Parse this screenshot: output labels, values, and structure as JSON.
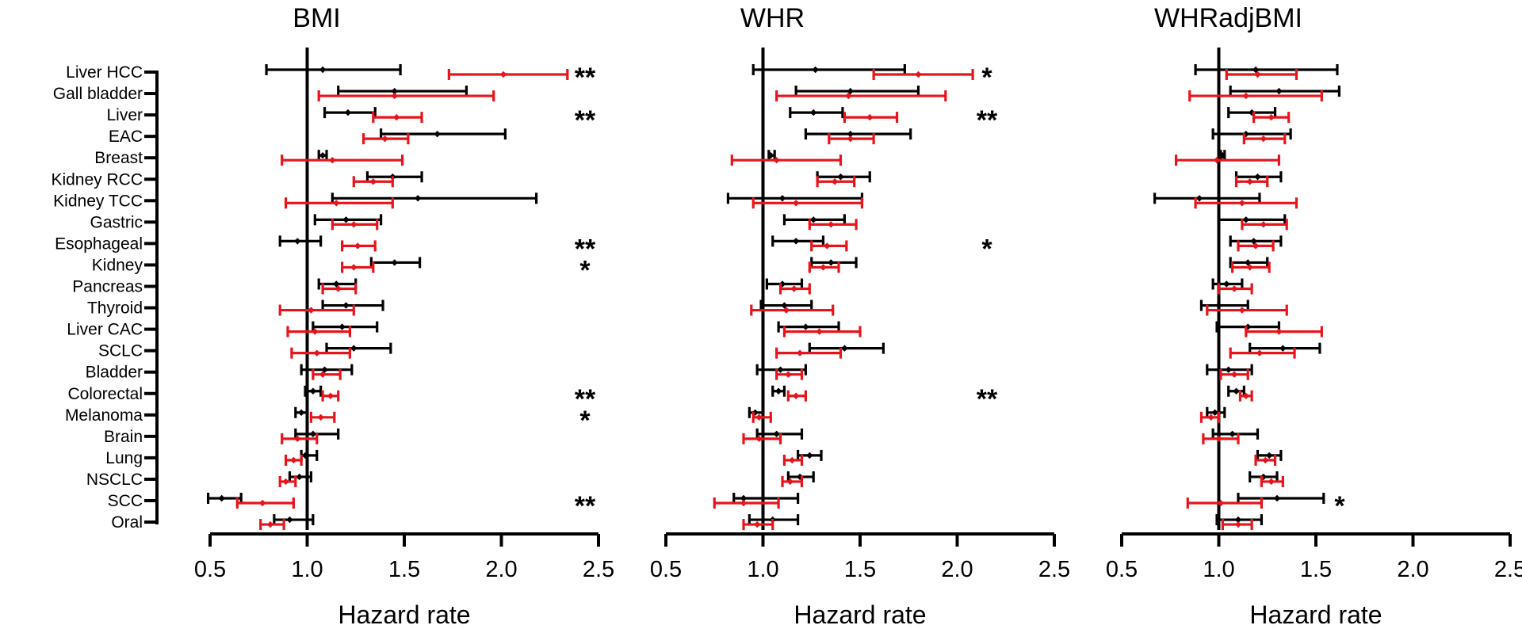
{
  "chart_data": {
    "type": "forest",
    "categories": [
      "Liver HCC",
      "Gall bladder",
      "Liver",
      "EAC",
      "Breast",
      "Kidney RCC",
      "Kidney TCC",
      "Gastric",
      "Esophageal",
      "Kidney",
      "Pancreas",
      "Thyroid",
      "Liver CAC",
      "SCLC",
      "Bladder",
      "Colorectal",
      "Melanoma",
      "Brain",
      "Lung",
      "NSCLC",
      "SCC",
      "Oral"
    ],
    "xlabel": "Hazard rate",
    "xlim": [
      0.5,
      2.5
    ],
    "xticks": [
      0.5,
      1.0,
      1.5,
      2.0,
      2.5
    ],
    "xtick_labels": [
      "0.5",
      "1.0",
      "1.5",
      "2.0",
      "2.5"
    ],
    "reference_line": 1.0,
    "series_colors": {
      "black": "#000000",
      "red": "#e8141c"
    },
    "panels": [
      {
        "title": "BMI",
        "black": [
          [
            1.08,
            0.79,
            1.48
          ],
          [
            1.45,
            1.16,
            1.82
          ],
          [
            1.21,
            1.09,
            1.35
          ],
          [
            1.67,
            1.38,
            2.02
          ],
          [
            1.08,
            1.06,
            1.1
          ],
          [
            1.44,
            1.31,
            1.59
          ],
          [
            1.57,
            1.13,
            2.18
          ],
          [
            1.2,
            1.04,
            1.38
          ],
          [
            0.95,
            0.86,
            1.07
          ],
          [
            1.45,
            1.33,
            1.58
          ],
          [
            1.15,
            1.06,
            1.25
          ],
          [
            1.2,
            1.08,
            1.39
          ],
          [
            1.18,
            1.03,
            1.36
          ],
          [
            1.24,
            1.1,
            1.43
          ],
          [
            1.09,
            0.97,
            1.23
          ],
          [
            1.03,
            0.99,
            1.07
          ],
          [
            0.97,
            0.94,
            1.0
          ],
          [
            1.03,
            0.94,
            1.16
          ],
          [
            0.99,
            0.97,
            1.05
          ],
          [
            0.96,
            0.91,
            1.02
          ],
          [
            0.56,
            0.49,
            0.66
          ],
          [
            0.91,
            0.83,
            1.03
          ]
        ],
        "red": [
          [
            2.01,
            1.73,
            2.34
          ],
          [
            1.45,
            1.06,
            1.96
          ],
          [
            1.46,
            1.34,
            1.59
          ],
          [
            1.4,
            1.29,
            1.52
          ],
          [
            1.13,
            0.87,
            1.49
          ],
          [
            1.34,
            1.24,
            1.44
          ],
          [
            1.15,
            0.89,
            1.44
          ],
          [
            1.24,
            1.13,
            1.36
          ],
          [
            1.26,
            1.18,
            1.35
          ],
          [
            1.24,
            1.18,
            1.34
          ],
          [
            1.16,
            1.08,
            1.25
          ],
          [
            1.02,
            0.86,
            1.24
          ],
          [
            1.04,
            0.9,
            1.22
          ],
          [
            1.05,
            0.92,
            1.22
          ],
          [
            1.08,
            1.03,
            1.17
          ],
          [
            1.12,
            1.08,
            1.16
          ],
          [
            1.07,
            1.02,
            1.14
          ],
          [
            0.95,
            0.87,
            1.05
          ],
          [
            0.93,
            0.89,
            0.97
          ],
          [
            0.89,
            0.86,
            0.94
          ],
          [
            0.77,
            0.64,
            0.93
          ],
          [
            0.81,
            0.76,
            0.88
          ]
        ],
        "sig": [
          "**",
          "",
          "**",
          "",
          "",
          "",
          "",
          "",
          "**",
          "*",
          "",
          "",
          "",
          "",
          "",
          "**",
          "*",
          "",
          "",
          "",
          "**",
          ""
        ]
      },
      {
        "title": "WHR",
        "black": [
          [
            1.27,
            0.95,
            1.73
          ],
          [
            1.45,
            1.17,
            1.8
          ],
          [
            1.26,
            1.14,
            1.41
          ],
          [
            1.45,
            1.22,
            1.76
          ],
          [
            1.04,
            1.03,
            1.06
          ],
          [
            1.4,
            1.28,
            1.55
          ],
          [
            1.1,
            0.82,
            1.51
          ],
          [
            1.26,
            1.11,
            1.42
          ],
          [
            1.17,
            1.05,
            1.31
          ],
          [
            1.35,
            1.25,
            1.48
          ],
          [
            1.1,
            1.02,
            1.2
          ],
          [
            1.11,
            0.99,
            1.25
          ],
          [
            1.22,
            1.08,
            1.39
          ],
          [
            1.42,
            1.24,
            1.62
          ],
          [
            1.09,
            0.97,
            1.22
          ],
          [
            1.08,
            1.05,
            1.11
          ],
          [
            0.96,
            0.93,
            1.0
          ],
          [
            1.07,
            0.97,
            1.2
          ],
          [
            1.24,
            1.18,
            1.3
          ],
          [
            1.19,
            1.13,
            1.26
          ],
          [
            0.9,
            0.85,
            1.18
          ],
          [
            1.05,
            0.93,
            1.18
          ]
        ],
        "red": [
          [
            1.8,
            1.57,
            2.08
          ],
          [
            1.44,
            1.07,
            1.94
          ],
          [
            1.55,
            1.42,
            1.69
          ],
          [
            1.45,
            1.34,
            1.57
          ],
          [
            1.07,
            0.84,
            1.4
          ],
          [
            1.37,
            1.28,
            1.47
          ],
          [
            1.17,
            0.95,
            1.51
          ],
          [
            1.35,
            1.24,
            1.48
          ],
          [
            1.33,
            1.25,
            1.43
          ],
          [
            1.31,
            1.24,
            1.39
          ],
          [
            1.16,
            1.09,
            1.24
          ],
          [
            1.12,
            0.94,
            1.36
          ],
          [
            1.29,
            1.11,
            1.5
          ],
          [
            1.19,
            1.07,
            1.4
          ],
          [
            1.13,
            1.07,
            1.2
          ],
          [
            1.17,
            1.13,
            1.22
          ],
          [
            0.98,
            0.95,
            1.04
          ],
          [
            0.98,
            0.9,
            1.09
          ],
          [
            1.15,
            1.11,
            1.2
          ],
          [
            1.14,
            1.1,
            1.2
          ],
          [
            0.9,
            0.75,
            1.08
          ],
          [
            0.97,
            0.9,
            1.05
          ]
        ],
        "sig": [
          "*",
          "",
          "**",
          "",
          "",
          "",
          "",
          "",
          "*",
          "",
          "",
          "",
          "",
          "",
          "",
          "**",
          "",
          "",
          "",
          "",
          "",
          ""
        ]
      },
      {
        "title": "WHRadjBMI",
        "black": [
          [
            1.19,
            0.88,
            1.61
          ],
          [
            1.31,
            1.06,
            1.62
          ],
          [
            1.17,
            1.05,
            1.29
          ],
          [
            1.14,
            0.97,
            1.37
          ],
          [
            1.02,
            1.01,
            1.03
          ],
          [
            1.2,
            1.09,
            1.32
          ],
          [
            0.9,
            0.67,
            1.21
          ],
          [
            1.14,
            1.0,
            1.34
          ],
          [
            1.18,
            1.06,
            1.32
          ],
          [
            1.15,
            1.06,
            1.25
          ],
          [
            1.04,
            0.97,
            1.12
          ],
          [
            1.0,
            0.91,
            1.15
          ],
          [
            1.15,
            0.99,
            1.31
          ],
          [
            1.33,
            1.16,
            1.52
          ],
          [
            1.05,
            0.94,
            1.17
          ],
          [
            1.09,
            1.05,
            1.13
          ],
          [
            0.98,
            0.94,
            1.03
          ],
          [
            1.07,
            0.97,
            1.2
          ],
          [
            1.26,
            1.2,
            1.32
          ],
          [
            1.23,
            1.16,
            1.3
          ],
          [
            1.3,
            1.1,
            1.54
          ],
          [
            1.1,
            0.99,
            1.22
          ]
        ],
        "red": [
          [
            1.2,
            1.04,
            1.4
          ],
          [
            1.14,
            0.85,
            1.53
          ],
          [
            1.27,
            1.18,
            1.36
          ],
          [
            1.23,
            1.13,
            1.34
          ],
          [
            0.99,
            0.78,
            1.31
          ],
          [
            1.16,
            1.09,
            1.25
          ],
          [
            1.12,
            0.88,
            1.4
          ],
          [
            1.23,
            1.12,
            1.35
          ],
          [
            1.19,
            1.1,
            1.28
          ],
          [
            1.16,
            1.07,
            1.26
          ],
          [
            1.08,
            1.0,
            1.17
          ],
          [
            1.12,
            0.94,
            1.35
          ],
          [
            1.31,
            1.14,
            1.53
          ],
          [
            1.21,
            1.06,
            1.39
          ],
          [
            1.08,
            1.01,
            1.15
          ],
          [
            1.14,
            1.11,
            1.17
          ],
          [
            0.96,
            0.91,
            1.0
          ],
          [
            1.0,
            0.92,
            1.1
          ],
          [
            1.24,
            1.19,
            1.29
          ],
          [
            1.27,
            1.22,
            1.33
          ],
          [
            1.01,
            0.84,
            1.22
          ],
          [
            1.1,
            1.02,
            1.17
          ]
        ],
        "sig": [
          "",
          "",
          "",
          "",
          "",
          "",
          "",
          "",
          "",
          "",
          "",
          "",
          "",
          "",
          "",
          "",
          "",
          "",
          "",
          "",
          "*",
          ""
        ]
      }
    ]
  }
}
